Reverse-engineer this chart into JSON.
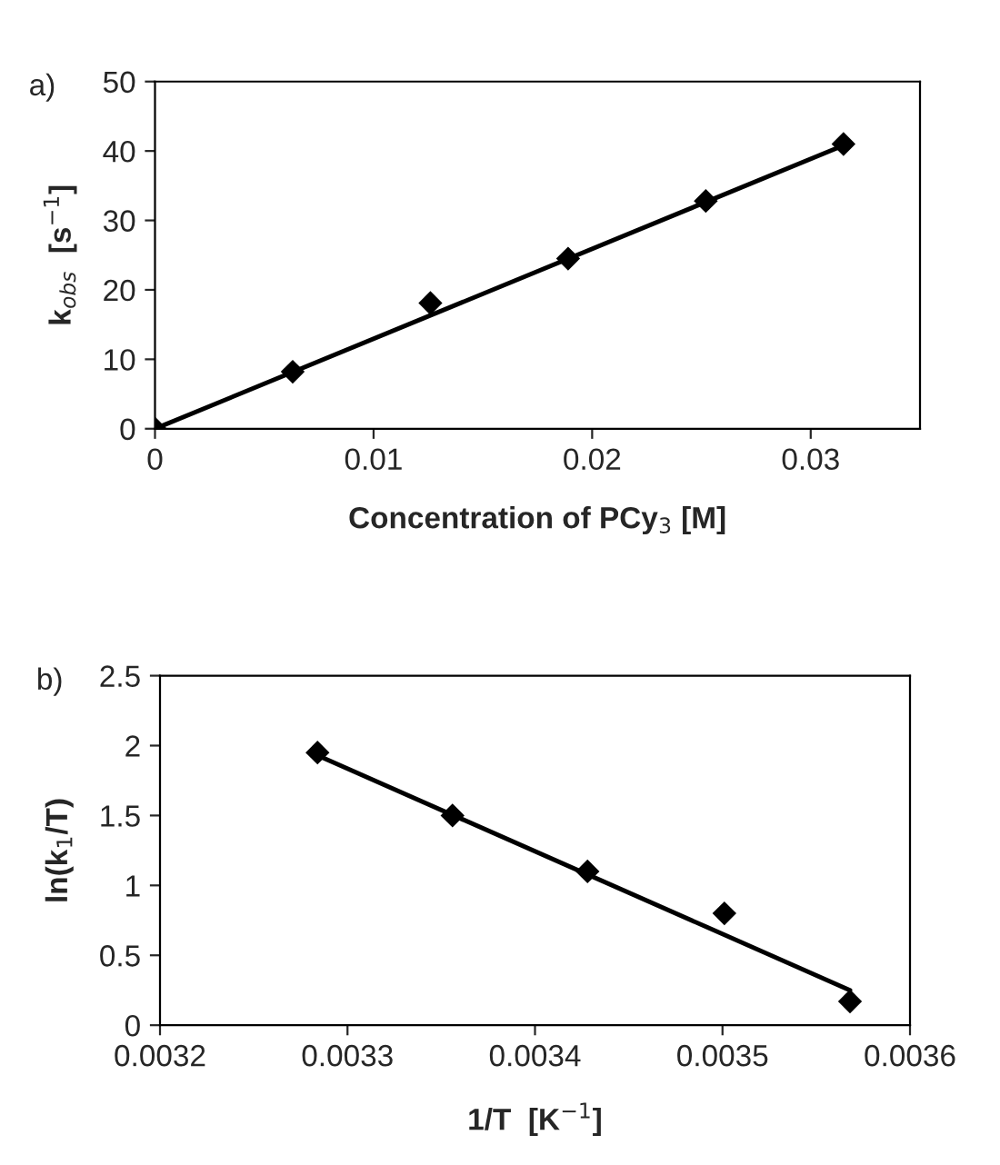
{
  "chart_data": [
    {
      "type": "scatter",
      "title": "a)",
      "xlabel": "Concentration of PCy$_{3}$ [M]",
      "ylabel": "k$_{obs}$  [s$^{−1}$]",
      "xlim": [
        0,
        0.035
      ],
      "xticks": [
        0,
        0.01,
        0.02,
        0.03
      ],
      "ylim": [
        0,
        50
      ],
      "yticks": [
        0,
        10,
        20,
        30,
        40,
        50
      ],
      "grid": false,
      "legend": false,
      "marker": "diamond",
      "series": [
        {
          "color": "#000000",
          "x": [
            0,
            0.0063,
            0.0126,
            0.0189,
            0.0252,
            0.0315
          ],
          "values": [
            0,
            8.2,
            18.1,
            24.5,
            32.8,
            41
          ]
        },
        {
          "type": "line",
          "color": "#000000",
          "marker": "none",
          "line_style": "solid",
          "x": [
            0,
            0.0315
          ],
          "values": [
            0,
            40.8
          ]
        }
      ]
    },
    {
      "type": "scatter",
      "title": "b)",
      "xlabel": "1/T  [K$^{−1}$]",
      "ylabel": "ln(k$_{1}$/T)",
      "xlim": [
        0.0032,
        0.0036
      ],
      "xticks": [
        0.0032,
        0.0033,
        0.0034,
        0.0035,
        0.0036
      ],
      "ylim": [
        0,
        2.5
      ],
      "yticks": [
        0,
        0.5,
        1,
        1.5,
        2,
        2.5
      ],
      "grid": false,
      "legend": false,
      "marker": "diamond",
      "series": [
        {
          "color": "#000000",
          "x": [
            0.003284,
            0.003356,
            0.003428,
            0.003501,
            0.003568
          ],
          "values": [
            1.95,
            1.5,
            1.1,
            0.8,
            0.17
          ]
        },
        {
          "type": "line",
          "color": "#000000",
          "marker": "none",
          "line_style": "solid",
          "x": [
            0.003284,
            0.003568
          ],
          "values": [
            1.93,
            0.25
          ]
        }
      ]
    }
  ]
}
